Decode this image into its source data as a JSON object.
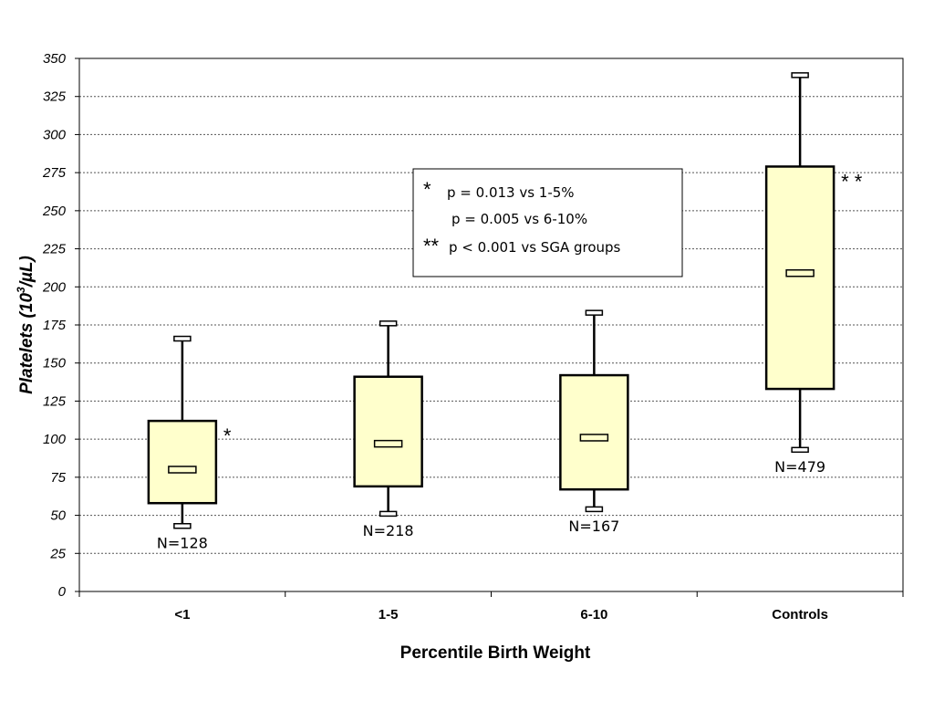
{
  "chart_data": {
    "type": "box",
    "title": "",
    "xlabel": "Percentile  Birth Weight",
    "ylabel_main": "Platelets (10",
    "ylabel_sup": "3",
    "ylabel_unit": "/µL)",
    "ylim": [
      0,
      350
    ],
    "ytick_step": 25,
    "yticks": [
      "0",
      "25",
      "50",
      "75",
      "100",
      "125",
      "150",
      "175",
      "200",
      "225",
      "250",
      "275",
      "300",
      "325",
      "350"
    ],
    "grid": true,
    "categories": [
      "<1",
      "1-5",
      "6-10",
      "Controls"
    ],
    "boxes": [
      {
        "category": "<1",
        "min": 43,
        "q1": 58,
        "median": 80,
        "q3": 112,
        "max": 166,
        "n_label": "N=128",
        "marker": "*"
      },
      {
        "category": "1-5",
        "min": 51,
        "q1": 69,
        "median": 97,
        "q3": 141,
        "max": 176,
        "n_label": "N=218",
        "marker": ""
      },
      {
        "category": "6-10",
        "min": 54,
        "q1": 67,
        "median": 101,
        "q3": 142,
        "max": 183,
        "n_label": "N=167",
        "marker": ""
      },
      {
        "category": "Controls",
        "min": 93,
        "q1": 133,
        "median": 209,
        "q3": 279,
        "max": 339,
        "n_label": "N=479",
        "marker": "**"
      }
    ],
    "box_fill": "#ffffcc",
    "legend": {
      "placement": "top-center",
      "lines": [
        {
          "marker": "*",
          "text": "p = 0.013 vs 1-5%"
        },
        {
          "marker": "",
          "text": "p = 0.005 vs 6-10%"
        },
        {
          "marker": "**",
          "text": "p < 0.001 vs SGA groups"
        }
      ]
    }
  }
}
